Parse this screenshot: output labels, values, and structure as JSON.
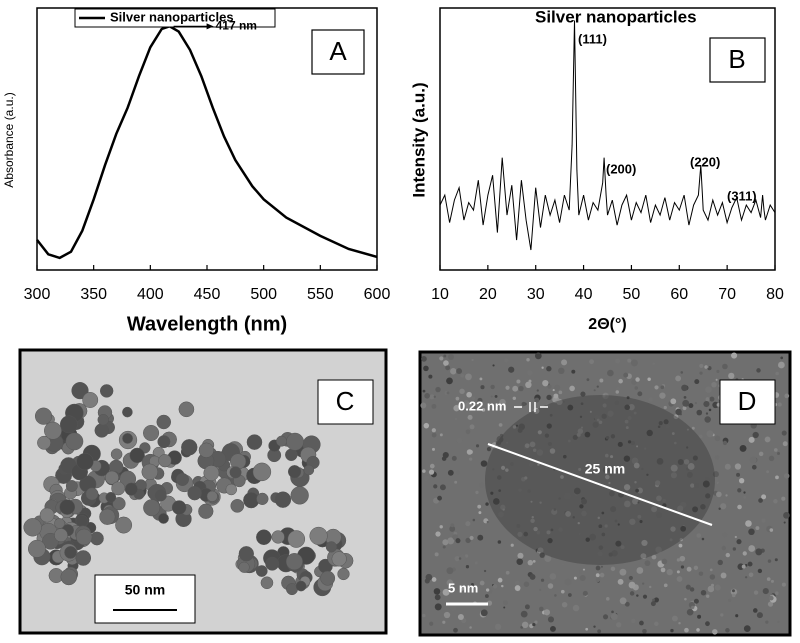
{
  "chart_data": [
    {
      "type": "line",
      "panel_label": "A",
      "xlabel": "Wavelength (nm)",
      "ylabel": "Absorbance (a.u.)",
      "peak_label": "417 nm",
      "x": [
        300,
        310,
        320,
        330,
        340,
        350,
        360,
        370,
        380,
        390,
        400,
        410,
        417,
        425,
        435,
        445,
        455,
        465,
        475,
        490,
        500,
        520,
        550,
        575,
        600
      ],
      "series": [
        {
          "name": "Silver nanoparticles",
          "color": "#000000",
          "values": [
            0.115,
            0.06,
            0.046,
            0.07,
            0.15,
            0.27,
            0.4,
            0.52,
            0.62,
            0.74,
            0.85,
            0.92,
            0.93,
            0.91,
            0.84,
            0.74,
            0.62,
            0.51,
            0.42,
            0.32,
            0.27,
            0.2,
            0.13,
            0.08,
            0.05
          ]
        }
      ],
      "xlim": [
        300,
        600
      ],
      "xticks": [
        300,
        350,
        400,
        450,
        500,
        550,
        600
      ],
      "ylim": [
        0,
        1
      ]
    },
    {
      "type": "line",
      "panel_label": "B",
      "title": "Silver nanoparticles",
      "xlabel": "2Θ(°)",
      "ylabel": "Intensity (a.u.)",
      "peak_labels": [
        "(111)",
        "(200)",
        "(220)",
        "(311)"
      ],
      "x": [
        10,
        11,
        12,
        13,
        14,
        15,
        16,
        17,
        18,
        19,
        20,
        21,
        22,
        23,
        24,
        25,
        26,
        27,
        28,
        29,
        30,
        31,
        32,
        33,
        34,
        35,
        36,
        37,
        37.6,
        38.1,
        38.6,
        39,
        40,
        41,
        42,
        43,
        44,
        44.3,
        44.7,
        45,
        46,
        47,
        48,
        49,
        50,
        51,
        52,
        53,
        54,
        55,
        56,
        57,
        58,
        59,
        60,
        61,
        62,
        63,
        64,
        64.5,
        64.9,
        65,
        66,
        67,
        68,
        69,
        70,
        71,
        72,
        73,
        74,
        75,
        76,
        77,
        77.4,
        77.7,
        78,
        79,
        80
      ],
      "series": [
        {
          "color": "#000000",
          "values": [
            0.26,
            0.3,
            0.19,
            0.28,
            0.33,
            0.2,
            0.27,
            0.24,
            0.36,
            0.18,
            0.3,
            0.38,
            0.15,
            0.45,
            0.22,
            0.34,
            0.12,
            0.36,
            0.2,
            0.08,
            0.33,
            0.17,
            0.3,
            0.22,
            0.28,
            0.19,
            0.3,
            0.24,
            0.5,
            1.0,
            0.4,
            0.22,
            0.3,
            0.2,
            0.27,
            0.24,
            0.35,
            0.45,
            0.3,
            0.22,
            0.28,
            0.18,
            0.26,
            0.3,
            0.2,
            0.27,
            0.23,
            0.3,
            0.19,
            0.26,
            0.22,
            0.29,
            0.2,
            0.27,
            0.24,
            0.3,
            0.18,
            0.26,
            0.3,
            0.42,
            0.28,
            0.24,
            0.2,
            0.28,
            0.22,
            0.27,
            0.19,
            0.25,
            0.29,
            0.2,
            0.26,
            0.23,
            0.28,
            0.21,
            0.3,
            0.24,
            0.2,
            0.26,
            0.23
          ]
        }
      ],
      "xlim": [
        10,
        80
      ],
      "xticks": [
        10,
        20,
        30,
        40,
        50,
        60,
        70,
        80
      ],
      "ylim": [
        0,
        1.05
      ]
    }
  ],
  "images": [
    {
      "panel_label": "C",
      "scale_bar": "50 nm"
    },
    {
      "panel_label": "D",
      "lattice_label": "0.22 nm",
      "size_label": "25 nm",
      "scale_bar": "5 nm"
    }
  ]
}
